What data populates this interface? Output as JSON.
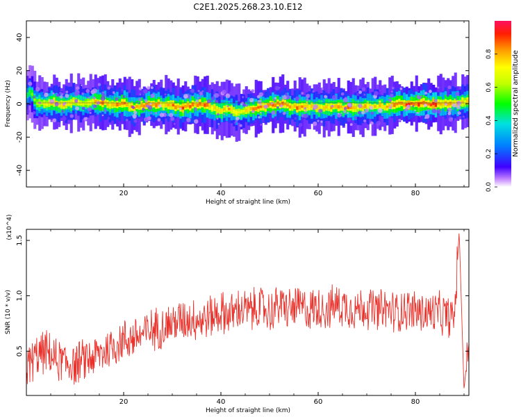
{
  "title": "C2E1.2025.268.23.10.E12",
  "chart_data": [
    {
      "type": "heatmap",
      "title": "C2E1.2025.268.23.10.E12",
      "xlabel": "Height of straight line (km)",
      "ylabel": "Frequency (Hz)",
      "xlim": [
        0,
        91
      ],
      "ylim": [
        -50,
        50
      ],
      "x_ticks": [
        20,
        40,
        60,
        80
      ],
      "y_ticks": [
        -40,
        -20,
        0,
        20,
        40
      ],
      "colorbar": {
        "label": "Normalized spectral amplitude",
        "range": [
          0.0,
          1.0
        ],
        "ticks": [
          0.0,
          0.2,
          0.4,
          0.6,
          0.8
        ]
      },
      "ridge": {
        "x": [
          0,
          1,
          2,
          4,
          6,
          8,
          10,
          12,
          14,
          16,
          18,
          20,
          22,
          24,
          26,
          28,
          30,
          32,
          34,
          36,
          38,
          40,
          42,
          43,
          44,
          46,
          48,
          50,
          52,
          54,
          56,
          58,
          60,
          62,
          64,
          66,
          68,
          70,
          72,
          74,
          76,
          78,
          80,
          82,
          84,
          86,
          88,
          90
        ],
        "y": [
          4,
          8,
          1,
          0,
          1,
          -1,
          2,
          0,
          1,
          1,
          -1,
          0,
          -2,
          -1,
          0,
          -1,
          -1,
          -2,
          -1,
          0,
          -2,
          -4,
          -3,
          -6,
          -5,
          -3,
          -2,
          -1,
          0,
          -1,
          -2,
          -2,
          -2,
          -2,
          -2,
          -2,
          -2,
          -2,
          -1,
          -2,
          0,
          0,
          0,
          0,
          0,
          0,
          0,
          1
        ],
        "peak_amplitude": [
          0.5,
          0.55,
          0.7,
          0.75,
          0.85,
          0.8,
          0.8,
          0.75,
          0.8,
          0.9,
          0.85,
          0.9,
          0.85,
          0.9,
          0.95,
          0.85,
          0.9,
          0.95,
          0.9,
          0.95,
          0.8,
          0.8,
          0.85,
          0.8,
          0.75,
          0.85,
          0.9,
          0.95,
          0.9,
          0.85,
          0.9,
          0.85,
          0.8,
          0.85,
          0.85,
          0.9,
          0.8,
          0.85,
          0.8,
          0.85,
          0.95,
          0.95,
          0.95,
          0.95,
          0.95,
          0.9,
          0.85,
          0.8
        ]
      }
    },
    {
      "type": "line",
      "xlabel": "Height of straight line (km)",
      "ylabel": "SNR (10 * v/v)",
      "y_multiplier": "(x10^4)",
      "xlim": [
        0,
        91
      ],
      "ylim": [
        0.1,
        1.6
      ],
      "x_ticks": [
        20,
        40,
        60,
        80
      ],
      "y_ticks": [
        0.5,
        1.0,
        1.5
      ],
      "y_tick_labels": [
        "0.5",
        "1.0",
        "1.5"
      ],
      "series": [
        {
          "color": "#e8322b",
          "x": [
            0,
            2,
            4,
            6,
            8,
            10,
            12,
            14,
            16,
            18,
            20,
            22,
            24,
            26,
            28,
            30,
            32,
            34,
            36,
            38,
            40,
            42,
            44,
            46,
            48,
            50,
            52,
            54,
            56,
            58,
            60,
            62,
            64,
            66,
            68,
            70,
            72,
            74,
            76,
            78,
            80,
            82,
            84,
            86,
            88,
            89,
            90,
            91
          ],
          "y": [
            0.35,
            0.45,
            0.5,
            0.42,
            0.4,
            0.38,
            0.42,
            0.45,
            0.5,
            0.55,
            0.6,
            0.62,
            0.65,
            0.7,
            0.72,
            0.75,
            0.78,
            0.8,
            0.78,
            0.82,
            0.85,
            0.83,
            0.88,
            0.86,
            0.9,
            0.85,
            0.92,
            0.88,
            0.9,
            0.87,
            0.9,
            0.88,
            0.92,
            0.9,
            0.88,
            0.9,
            0.86,
            0.88,
            0.85,
            0.88,
            0.86,
            0.84,
            0.85,
            0.82,
            0.8,
            1.58,
            0.15,
            0.6
          ],
          "noise_amplitude": 0.22
        }
      ]
    }
  ]
}
